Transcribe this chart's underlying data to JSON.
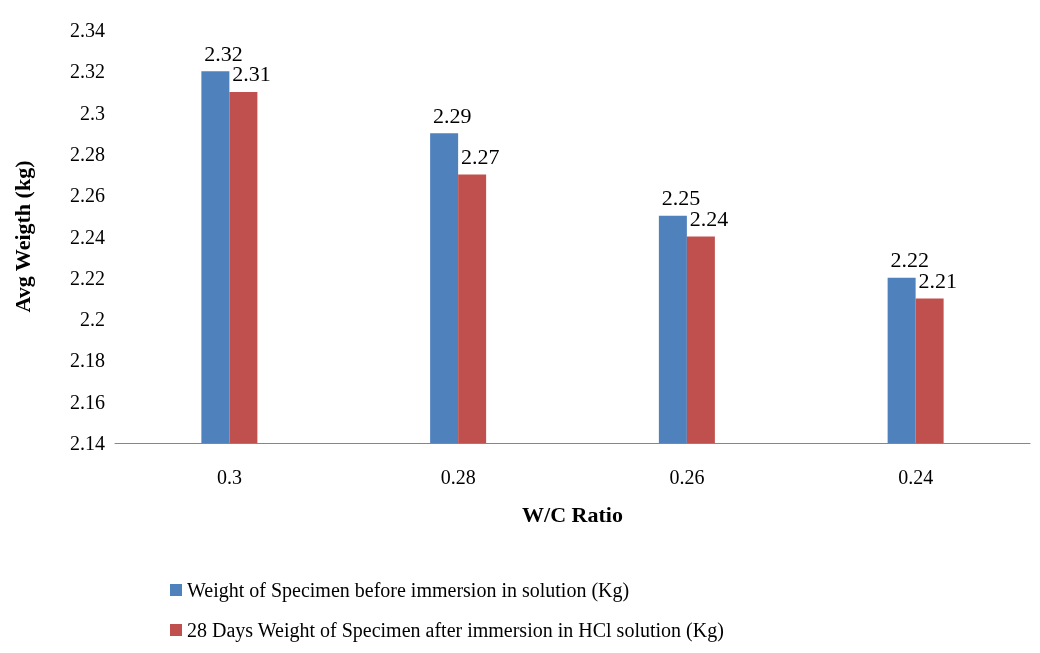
{
  "chart_data": {
    "type": "bar",
    "xlabel": "W/C Ratio",
    "ylabel": "Avg Weigth (kg)",
    "categories": [
      "0.3",
      "0.28",
      "0.26",
      "0.24"
    ],
    "series": [
      {
        "name": "Weight of Specimen before immersion in solution (Kg)",
        "color": "#4f81bd",
        "values": [
          2.32,
          2.29,
          2.25,
          2.22
        ]
      },
      {
        "name": "28 Days Weight of Specimen after immersion in HCl solution (Kg)",
        "color": "#c0504d",
        "values": [
          2.31,
          2.27,
          2.24,
          2.21
        ]
      }
    ],
    "ylim": [
      2.14,
      2.34
    ],
    "yticks": [
      2.14,
      2.16,
      2.18,
      2.2,
      2.22,
      2.24,
      2.26,
      2.28,
      2.3,
      2.32,
      2.34
    ],
    "grid": false,
    "legend": "bottom",
    "data_labels": true
  }
}
